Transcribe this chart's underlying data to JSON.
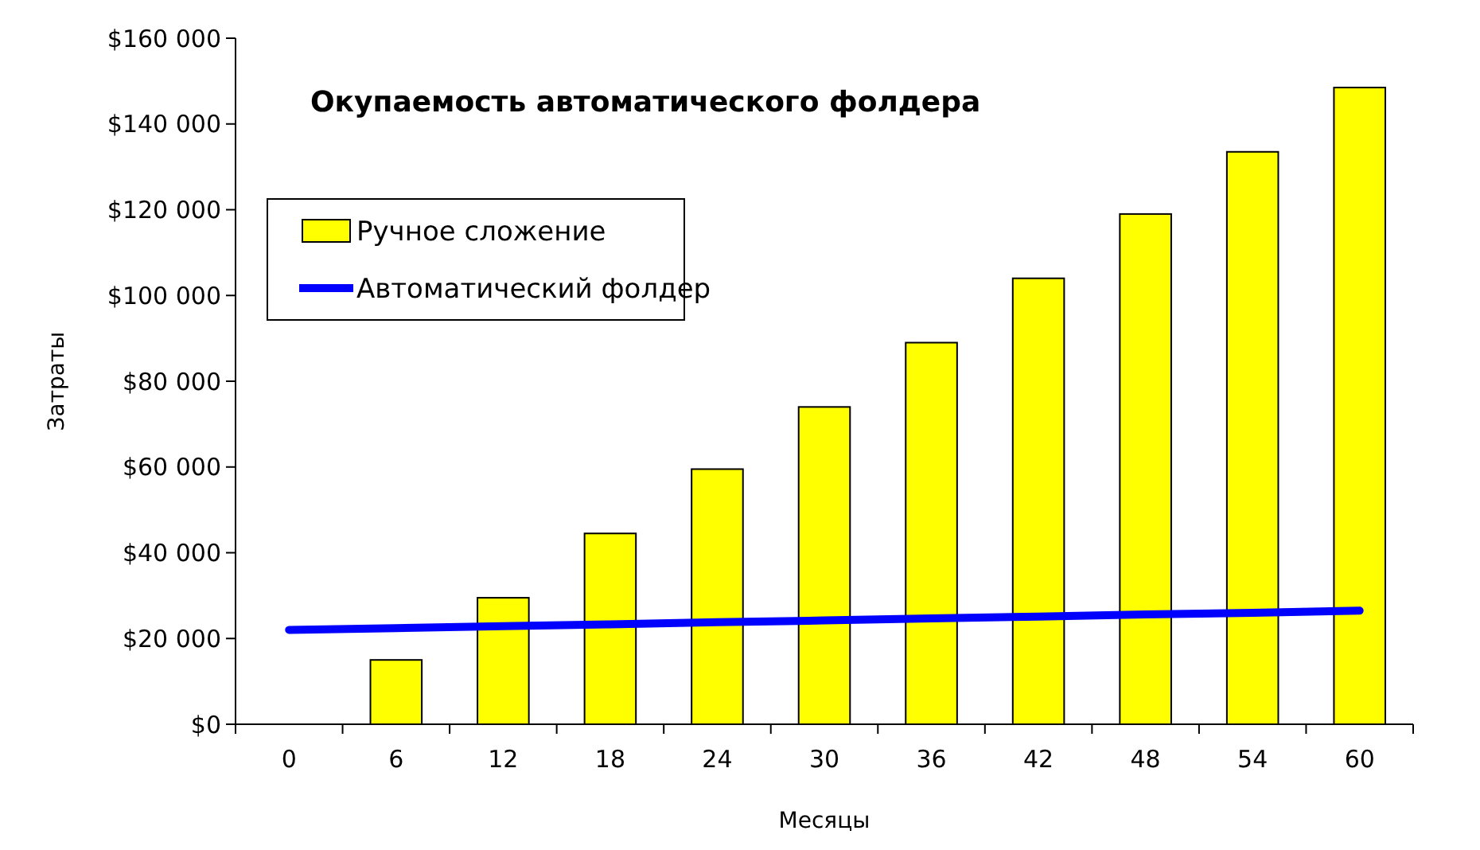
{
  "chart_data": {
    "type": "bar",
    "title": "Окупаемость автоматического фолдера",
    "xlabel": "Месяцы",
    "ylabel": "Затраты",
    "categories": [
      "0",
      "6",
      "12",
      "18",
      "24",
      "30",
      "36",
      "42",
      "48",
      "54",
      "60"
    ],
    "series": [
      {
        "name": "Ручное сложение",
        "color": "#ffff00",
        "values": [
          0,
          15000,
          29500,
          44500,
          59500,
          74000,
          89000,
          104000,
          119000,
          133500,
          148500
        ]
      },
      {
        "name": "Автоматический фолдер",
        "type": "line",
        "color": "#0000ff",
        "values": [
          22000,
          22400,
          22900,
          23300,
          23800,
          24200,
          24700,
          25100,
          25600,
          26000,
          26500
        ]
      }
    ],
    "ylim": [
      0,
      160000
    ],
    "yticks": [
      {
        "value": 0,
        "label": "$0"
      },
      {
        "value": 20000,
        "label": "$20 000"
      },
      {
        "value": 40000,
        "label": "$40 000"
      },
      {
        "value": 60000,
        "label": "$60 000"
      },
      {
        "value": 80000,
        "label": "$80 000"
      },
      {
        "value": 100000,
        "label": "$100 000"
      },
      {
        "value": 120000,
        "label": "$120 000"
      },
      {
        "value": 140000,
        "label": "$140 000"
      },
      {
        "value": 160000,
        "label": "$160 000"
      }
    ],
    "grid": false,
    "legend": "top left",
    "marker": "none"
  }
}
